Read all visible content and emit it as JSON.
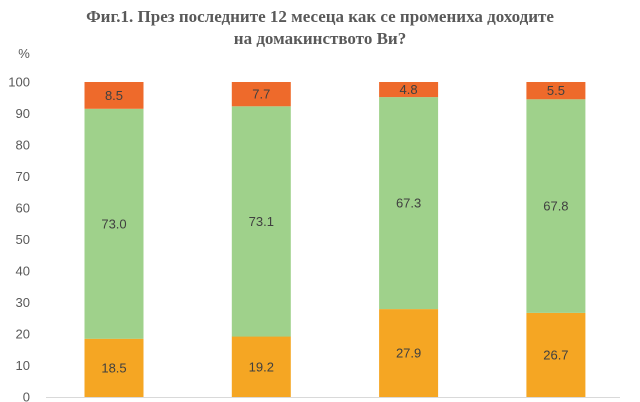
{
  "chart_data": {
    "type": "bar",
    "stacked": true,
    "title": "Фиг.1. През последните 12 месеца как се промениха доходите на домакинството Ви?",
    "title_lines": [
      "Фиг.1. През последните 12 месеца как се промениха доходите",
      "на домакинството Ви?"
    ],
    "ylabel": "%",
    "xlabel": "",
    "ylim": [
      0,
      100
    ],
    "yticks": [
      0,
      10,
      20,
      30,
      40,
      50,
      60,
      70,
      80,
      90,
      100
    ],
    "gridlines": false,
    "legend": "none",
    "categories": [
      "",
      "",
      "",
      ""
    ],
    "series": [
      {
        "color": "#f5a623",
        "values": [
          18.5,
          19.2,
          27.9,
          26.7
        ],
        "labels": [
          "18.5",
          "19.2",
          "27.9",
          "26.7"
        ]
      },
      {
        "color": "#9fd18b",
        "values": [
          73.0,
          73.1,
          67.3,
          67.8
        ],
        "labels": [
          "73.0",
          "73.1",
          "67.3",
          "67.8"
        ]
      },
      {
        "color": "#ee6a2b",
        "values": [
          8.5,
          7.7,
          4.8,
          5.5
        ],
        "labels": [
          "8.5",
          "7.7",
          "4.8",
          "5.5"
        ]
      }
    ]
  }
}
